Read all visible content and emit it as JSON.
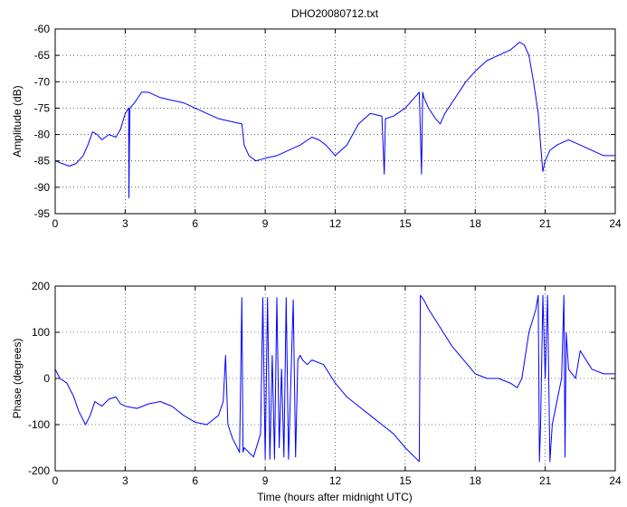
{
  "figure": {
    "title": "DHO20080712.txt",
    "xlabel": "Time (hours after midnight UTC)",
    "series_color": "#0000ff"
  },
  "chart_data": [
    {
      "type": "line",
      "ylabel": "Amplitude (dB)",
      "xlim": [
        0,
        24
      ],
      "ylim": [
        -95,
        -60
      ],
      "xticks": [
        0,
        3,
        6,
        9,
        12,
        15,
        18,
        21,
        24
      ],
      "yticks": [
        -95,
        -90,
        -85,
        -80,
        -75,
        -70,
        -65,
        -60
      ],
      "grid": true,
      "series": [
        {
          "x": [
            0,
            0.3,
            0.6,
            0.9,
            1.2,
            1.4,
            1.6,
            1.8,
            2.0,
            2.3,
            2.6,
            2.8,
            3.0,
            3.15,
            3.16,
            3.2,
            3.4,
            3.7,
            4.0,
            4.5,
            5.0,
            5.5,
            6.0,
            6.5,
            7.0,
            7.5,
            8.0,
            8.1,
            8.3,
            8.6,
            9.0,
            9.5,
            10.0,
            10.5,
            11.0,
            11.3,
            11.6,
            12.0,
            12.5,
            13.0,
            13.5,
            14.0,
            14.1,
            14.15,
            14.5,
            15.0,
            15.4,
            15.6,
            15.7,
            15.75,
            15.8,
            16.0,
            16.3,
            16.5,
            16.7,
            17.0,
            17.3,
            17.6,
            18.0,
            18.5,
            19.0,
            19.5,
            19.9,
            20.1,
            20.3,
            20.5,
            20.7,
            20.8,
            20.9,
            21.0,
            21.2,
            21.5,
            22.0,
            22.5,
            23.0,
            23.5,
            24.0
          ],
          "values": [
            -85,
            -85.5,
            -86,
            -85.5,
            -84,
            -82,
            -79.5,
            -80,
            -81,
            -80,
            -80.5,
            -79,
            -76,
            -75,
            -92,
            -75,
            -74,
            -72,
            -72,
            -73,
            -73.5,
            -74,
            -75,
            -76,
            -77,
            -77.5,
            -78,
            -82,
            -84,
            -85,
            -84.5,
            -84,
            -83,
            -82,
            -80.5,
            -81,
            -82,
            -84,
            -82,
            -78,
            -76,
            -76.5,
            -87.5,
            -77,
            -76.5,
            -75,
            -73,
            -72,
            -87.5,
            -72,
            -73,
            -75,
            -77,
            -78,
            -76,
            -74,
            -72,
            -70,
            -68,
            -66,
            -65,
            -64,
            -62.5,
            -63,
            -65,
            -70,
            -76,
            -82,
            -87,
            -85,
            -83,
            -82,
            -81,
            -82,
            -83,
            -84,
            -84
          ]
        }
      ]
    },
    {
      "type": "line",
      "ylabel": "Phase (degrees)",
      "xlim": [
        0,
        24
      ],
      "ylim": [
        -200,
        200
      ],
      "xticks": [
        0,
        3,
        6,
        9,
        12,
        15,
        18,
        21,
        24
      ],
      "yticks": [
        -200,
        -100,
        0,
        100,
        200
      ],
      "grid": true,
      "series": [
        {
          "x": [
            0,
            0.2,
            0.5,
            0.8,
            1.0,
            1.3,
            1.5,
            1.7,
            2.0,
            2.3,
            2.6,
            2.8,
            3.0,
            3.5,
            4.0,
            4.5,
            5.0,
            5.5,
            6.0,
            6.5,
            7.0,
            7.2,
            7.3,
            7.4,
            7.6,
            7.8,
            7.9,
            8.0,
            8.05,
            8.1,
            8.5,
            8.8,
            8.9,
            9.0,
            9.1,
            9.2,
            9.3,
            9.4,
            9.5,
            9.6,
            9.7,
            9.8,
            9.9,
            10.0,
            10.2,
            10.3,
            10.4,
            10.5,
            10.6,
            10.8,
            11.0,
            11.5,
            12.0,
            12.5,
            13.0,
            13.5,
            14.0,
            14.5,
            15.0,
            15.5,
            15.6,
            15.65,
            15.8,
            16.0,
            16.5,
            17.0,
            17.5,
            18.0,
            18.5,
            19.0,
            19.5,
            19.8,
            20.0,
            20.3,
            20.6,
            20.7,
            20.75,
            20.8,
            20.9,
            21.0,
            21.1,
            21.2,
            21.3,
            21.5,
            21.7,
            21.8,
            21.85,
            21.9,
            22.0,
            22.3,
            22.5,
            23.0,
            23.5,
            24.0
          ],
          "values": [
            20,
            0,
            -10,
            -40,
            -70,
            -100,
            -80,
            -50,
            -60,
            -45,
            -40,
            -55,
            -60,
            -65,
            -55,
            -50,
            -60,
            -80,
            -95,
            -100,
            -80,
            -50,
            50,
            -100,
            -130,
            -150,
            -160,
            175,
            -160,
            -150,
            -170,
            -120,
            175,
            -175,
            175,
            -175,
            50,
            -175,
            175,
            -150,
            20,
            -170,
            175,
            -175,
            170,
            -170,
            40,
            50,
            40,
            30,
            40,
            30,
            -10,
            -40,
            -60,
            -80,
            -100,
            -120,
            -150,
            -175,
            -180,
            180,
            170,
            150,
            110,
            70,
            40,
            10,
            0,
            0,
            -10,
            -20,
            0,
            100,
            150,
            180,
            -180,
            -100,
            180,
            0,
            180,
            -180,
            -100,
            -50,
            0,
            180,
            -170,
            100,
            20,
            0,
            60,
            20,
            10,
            10
          ]
        }
      ]
    }
  ]
}
